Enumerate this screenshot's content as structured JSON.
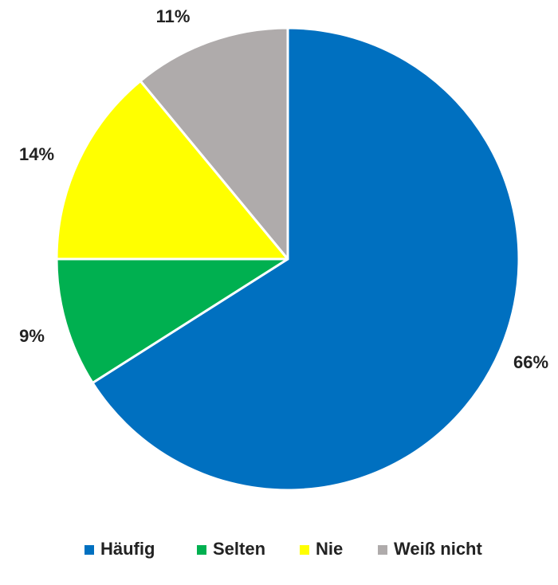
{
  "chart_data": {
    "type": "pie",
    "title": "",
    "slices": [
      {
        "label": "Häufig",
        "value": 66,
        "display": "66%",
        "color": "#0070C0"
      },
      {
        "label": "Selten",
        "value": 9,
        "display": "9%",
        "color": "#00B050"
      },
      {
        "label": "Nie",
        "value": 14,
        "display": "14%",
        "color": "#FFFF00"
      },
      {
        "label": "Weiß nicht",
        "value": 11,
        "display": "11%",
        "color": "#AFABAB"
      }
    ],
    "start": "12 o'clock",
    "direction": "clockwise",
    "legend": {
      "position": "bottom"
    }
  }
}
